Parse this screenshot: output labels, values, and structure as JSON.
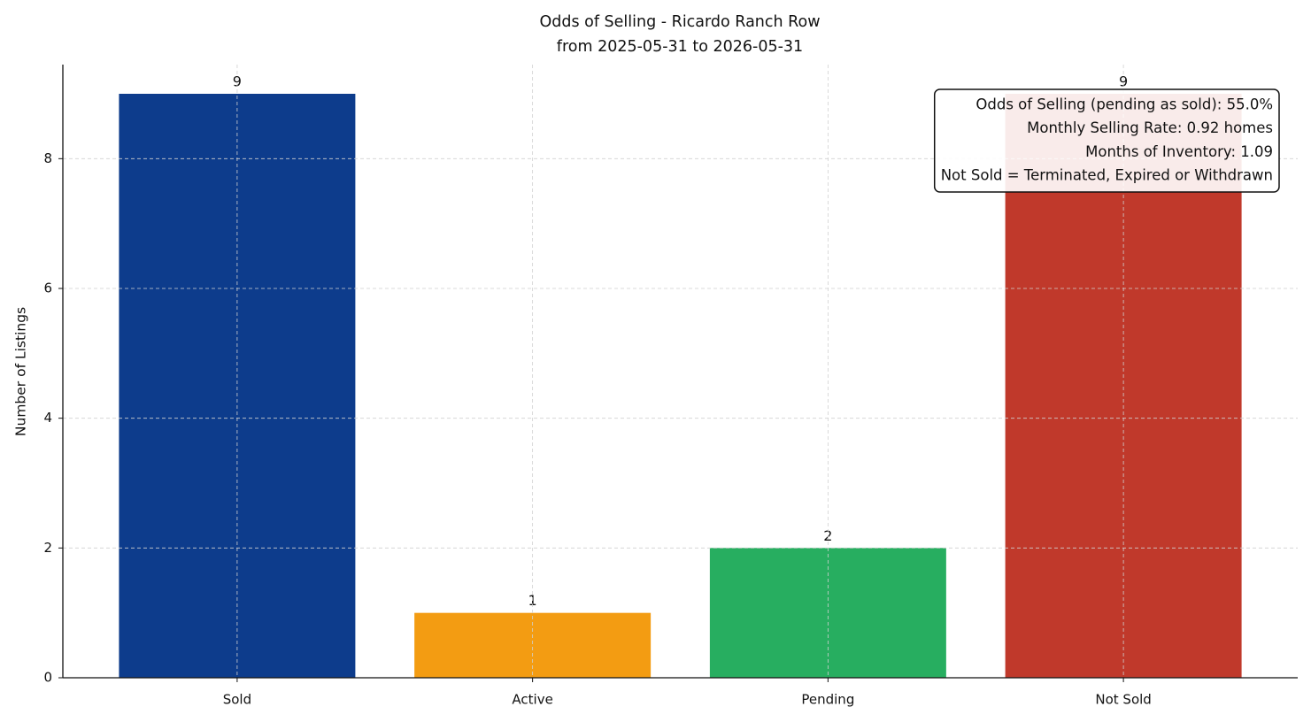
{
  "chart_data": {
    "type": "bar",
    "title": [
      "Odds of Selling - Ricardo Ranch Row",
      "from 2025-05-31 to 2026-05-31"
    ],
    "y_label": "Number of Listings",
    "categories": [
      "Sold",
      "Active",
      "Pending",
      "Not Sold"
    ],
    "values": [
      9,
      1,
      2,
      9
    ],
    "colors": [
      "#0d3c8c",
      "#f39c12",
      "#27ae60",
      "#c0392b"
    ],
    "ylim": [
      0,
      9.45
    ],
    "yticks": [
      0,
      2,
      4,
      6,
      8
    ],
    "grid": true,
    "annotation": [
      "Odds of Selling (pending as sold): 55.0%",
      "Monthly Selling Rate: 0.92 homes",
      "Months of Inventory: 1.09",
      "Not Sold = Terminated, Expired or Withdrawn"
    ]
  }
}
